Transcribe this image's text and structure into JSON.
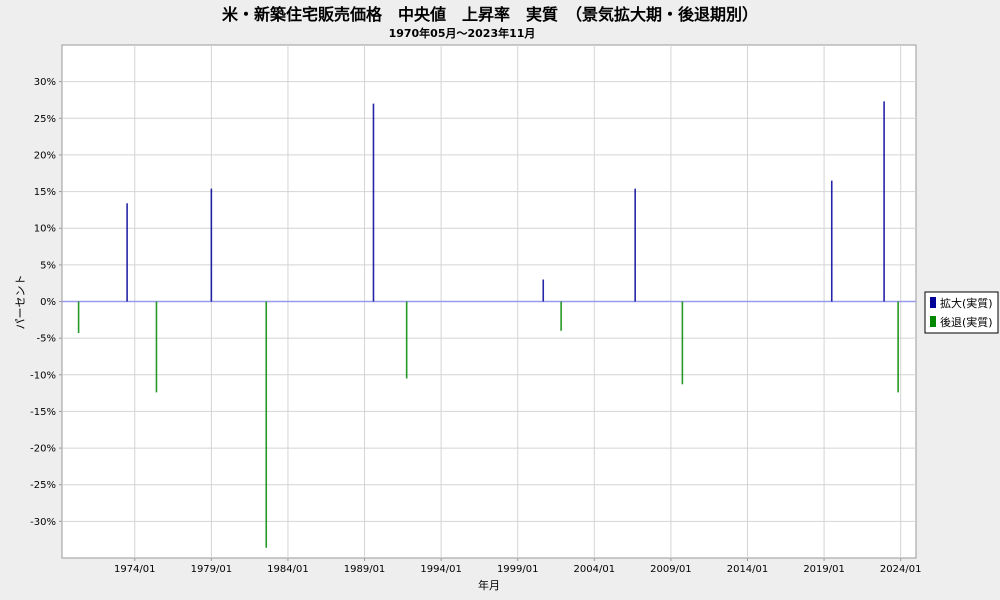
{
  "chart_data": {
    "type": "bar",
    "title": "米・新築住宅販売価格　中央値　上昇率　実質　（景気拡大期・後退期別）",
    "subtitle": "1970年05月～2023年11月",
    "xlabel": "年月",
    "ylabel": "パーセント",
    "xlim": [
      "1969/04",
      "2025/01"
    ],
    "ylim": [
      -35,
      35
    ],
    "x_ticks": [
      "1974/01",
      "1979/01",
      "1984/01",
      "1989/01",
      "1994/01",
      "1999/01",
      "2004/01",
      "2009/01",
      "2014/01",
      "2019/01",
      "2024/01"
    ],
    "y_ticks": [
      -30,
      -25,
      -20,
      -15,
      -10,
      -5,
      0,
      5,
      10,
      15,
      20,
      25,
      30
    ],
    "y_tick_labels": [
      "-30%",
      "-25%",
      "-20%",
      "-15%",
      "-10%",
      "-5%",
      "0%",
      "5%",
      "10%",
      "15%",
      "20%",
      "25%",
      "30%"
    ],
    "grid": true,
    "legend_position": "right",
    "series": [
      {
        "name": "拡大(実質)",
        "color": "#000099",
        "points": [
          {
            "x": "1973/07",
            "y": 13.4
          },
          {
            "x": "1979/01",
            "y": 15.4
          },
          {
            "x": "1989/08",
            "y": 27.0
          },
          {
            "x": "2000/09",
            "y": 3.0
          },
          {
            "x": "2006/09",
            "y": 15.4
          },
          {
            "x": "2019/07",
            "y": 16.5
          },
          {
            "x": "2022/12",
            "y": 27.3
          }
        ]
      },
      {
        "name": "後退(実質)",
        "color": "#008800",
        "points": [
          {
            "x": "1970/05",
            "y": -4.3
          },
          {
            "x": "1975/06",
            "y": -12.4
          },
          {
            "x": "1982/08",
            "y": -33.6
          },
          {
            "x": "1991/10",
            "y": -10.5
          },
          {
            "x": "2001/11",
            "y": -4.0
          },
          {
            "x": "2009/10",
            "y": -11.3
          },
          {
            "x": "2023/11",
            "y": -12.4
          }
        ]
      }
    ]
  }
}
